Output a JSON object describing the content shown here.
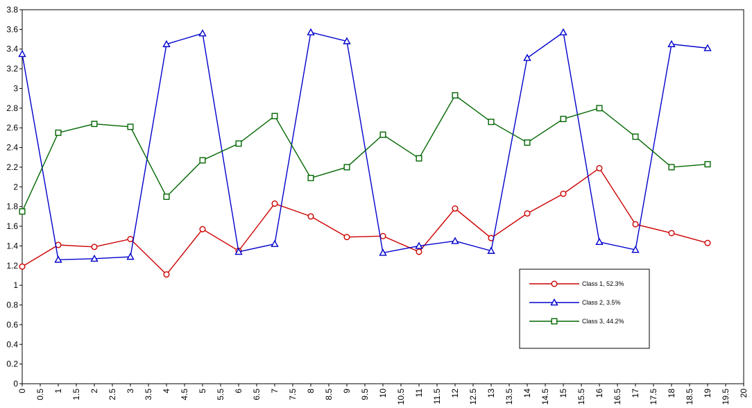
{
  "chart_data": {
    "type": "line",
    "title": "",
    "xlabel": "",
    "ylabel": "",
    "xlim": [
      0,
      20
    ],
    "ylim": [
      0,
      3.8
    ],
    "x_tick_step": 0.5,
    "y_tick_step": 0.2,
    "grid": false,
    "legend_position": "bottom-right",
    "x": [
      0,
      1,
      2,
      3,
      4,
      5,
      6,
      7,
      8,
      9,
      10,
      11,
      12,
      13,
      14,
      15,
      16,
      17,
      18,
      19
    ],
    "series": [
      {
        "name": "Class 1, 52.3%",
        "color": "#cc0000",
        "marker": "circle",
        "values": [
          1.19,
          1.41,
          1.39,
          1.47,
          1.11,
          1.57,
          1.35,
          1.83,
          1.7,
          1.49,
          1.5,
          1.34,
          1.78,
          1.48,
          1.73,
          1.93,
          2.19,
          1.62,
          1.53,
          1.43
        ]
      },
      {
        "name": "Class 2, 3.5%",
        "color": "#0000cc",
        "marker": "triangle",
        "values": [
          3.35,
          1.26,
          1.27,
          1.29,
          3.45,
          3.56,
          1.34,
          1.42,
          3.57,
          3.48,
          1.33,
          1.4,
          1.45,
          1.35,
          3.31,
          3.57,
          1.44,
          1.36,
          3.45,
          3.41
        ]
      },
      {
        "name": "Class 3, 44.2%",
        "color": "#006600",
        "marker": "square",
        "values": [
          1.75,
          2.55,
          2.64,
          2.61,
          1.9,
          2.27,
          2.44,
          2.72,
          2.09,
          2.2,
          2.53,
          2.29,
          2.93,
          2.66,
          2.45,
          2.69,
          2.8,
          2.51,
          2.2,
          2.23
        ]
      }
    ]
  }
}
